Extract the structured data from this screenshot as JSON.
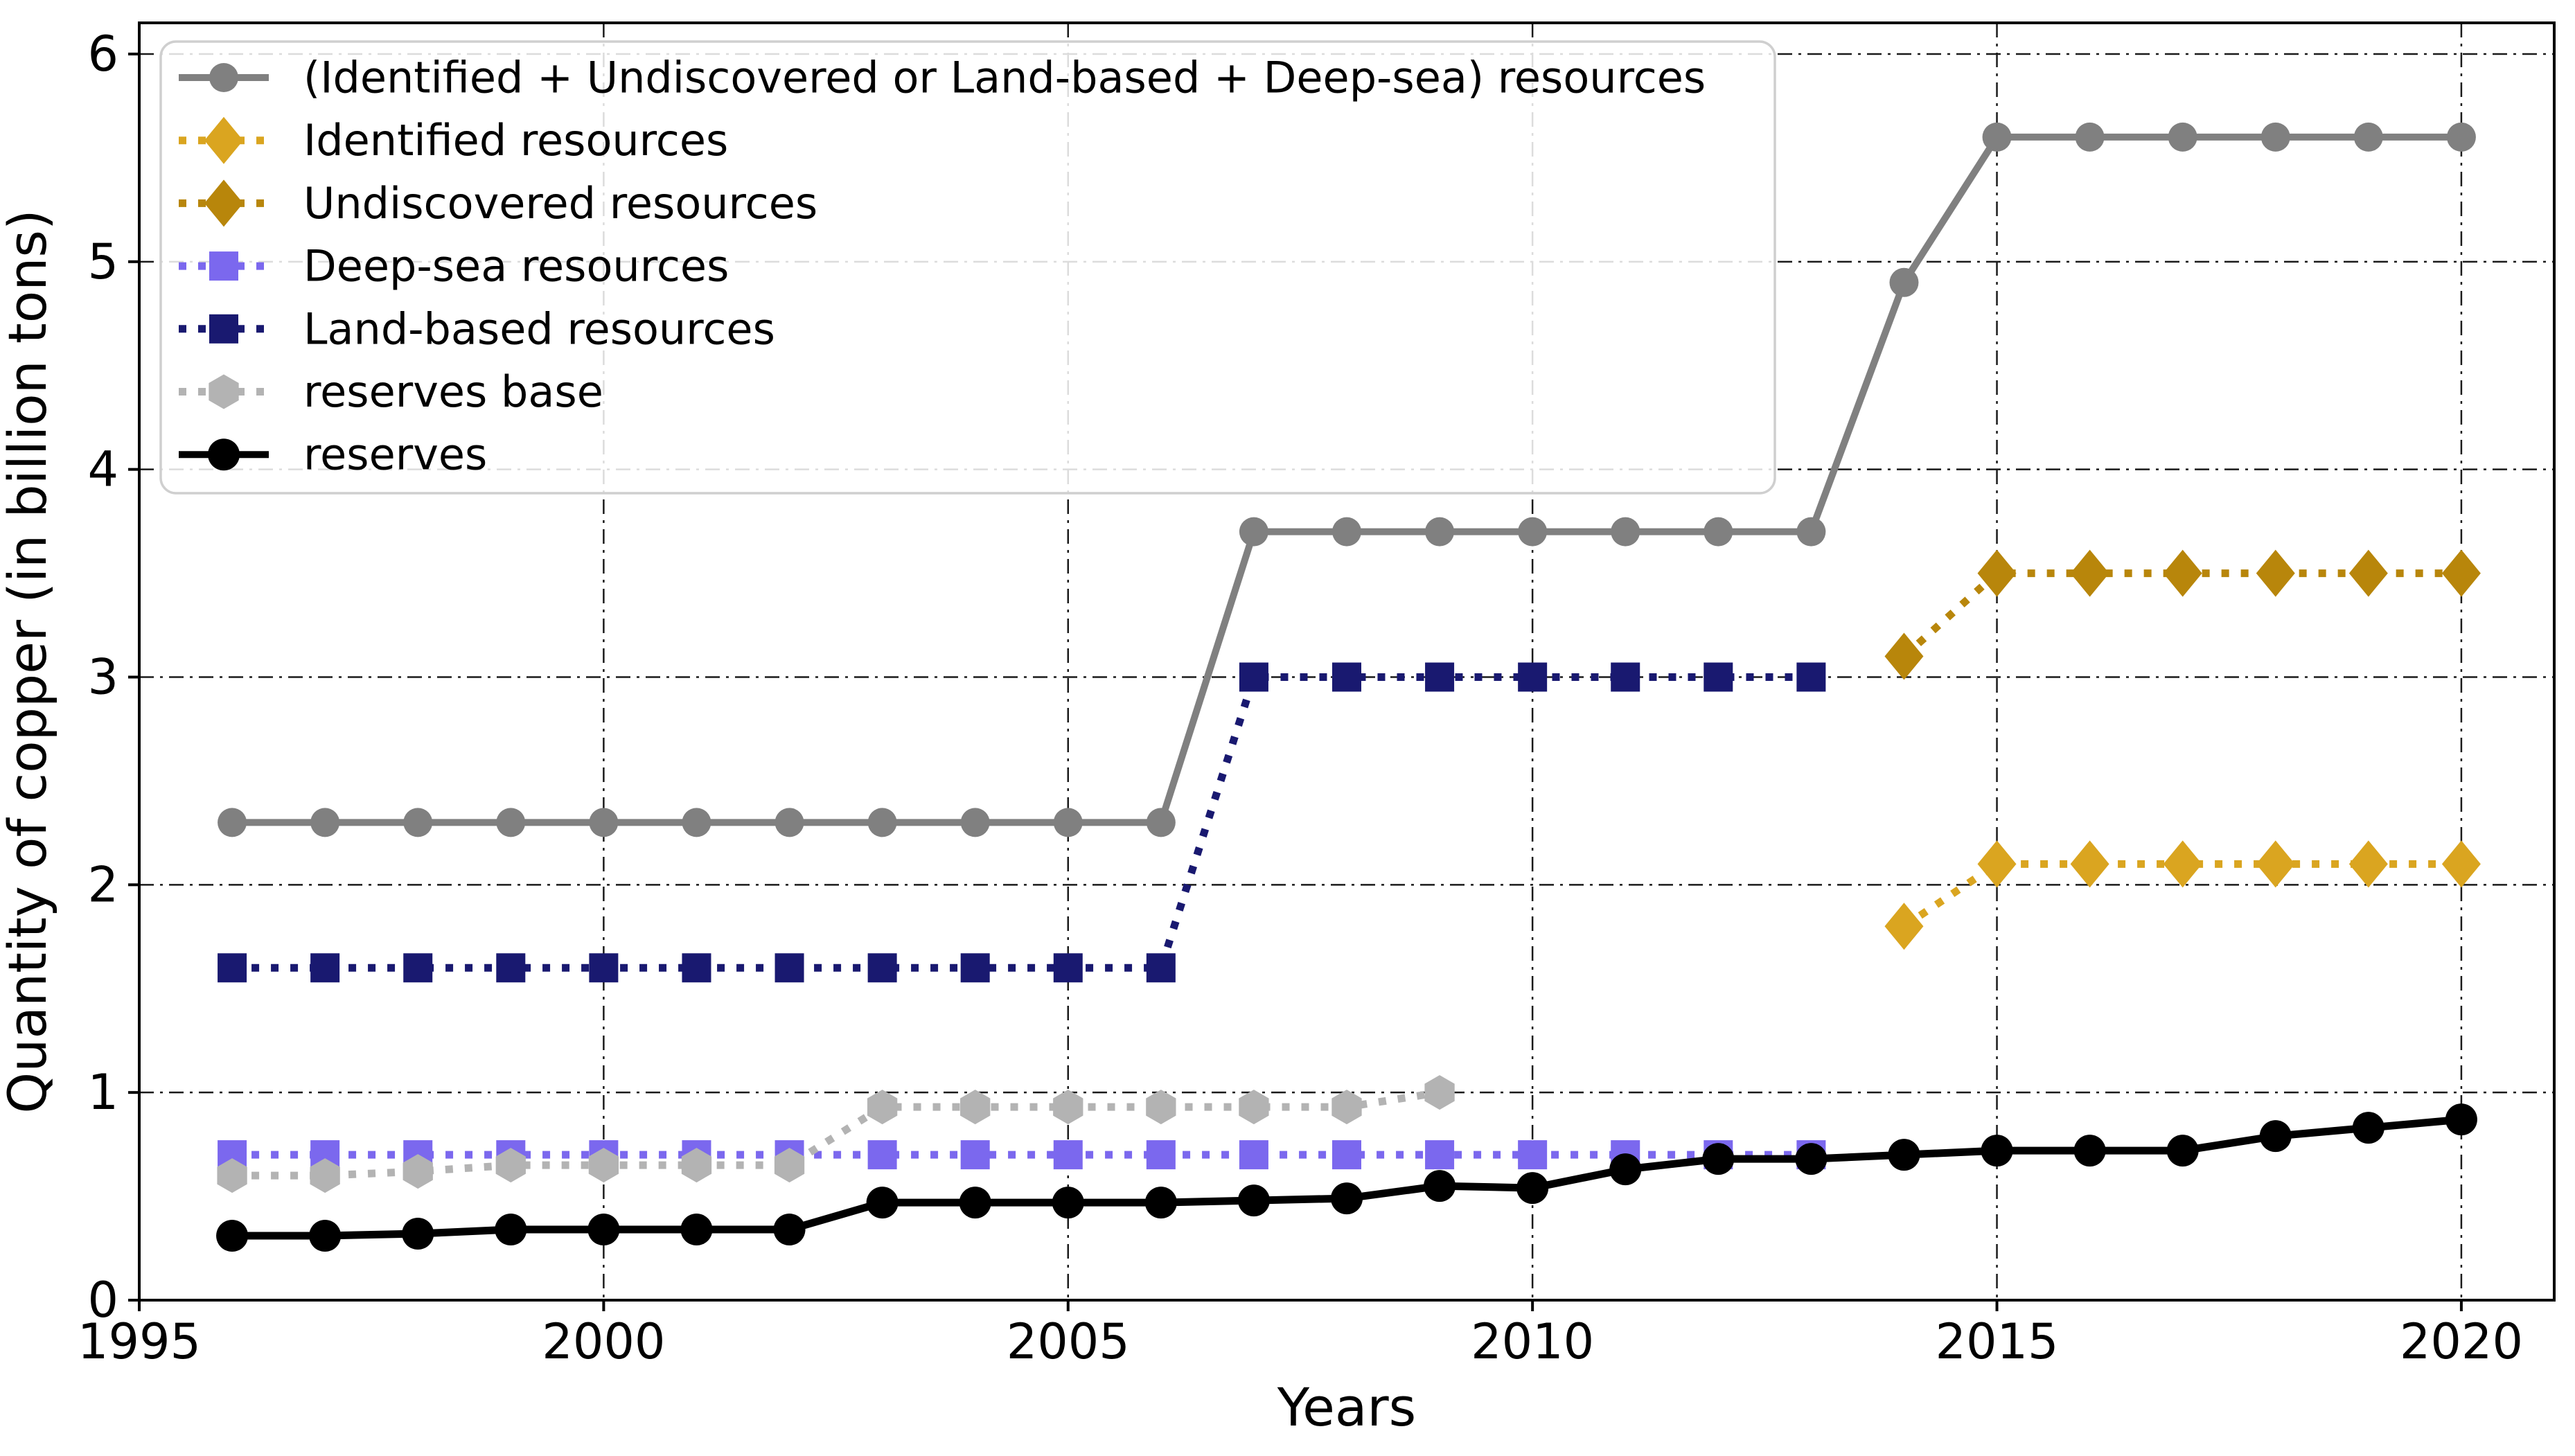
{
  "chart_data": {
    "type": "line",
    "title": "",
    "xlabel": "Years",
    "ylabel": "Quantity of copper (in billion tons)",
    "xlim": [
      1995,
      2021
    ],
    "ylim": [
      0,
      6.15
    ],
    "x_ticks": [
      1995,
      2000,
      2005,
      2010,
      2015,
      2020
    ],
    "y_ticks": [
      0,
      1,
      2,
      3,
      4,
      5,
      6
    ],
    "grid": "dash-dot on both axes",
    "legend_position": "upper left",
    "background_color": "#ffffff",
    "grid_color": "#1a1a1a",
    "series": [
      {
        "name": "(Identified + Undiscovered or Land-based + Deep-sea) resources",
        "color": "#808080",
        "line_style": "solid",
        "marker": "circle",
        "x": [
          1996,
          1997,
          1998,
          1999,
          2000,
          2001,
          2002,
          2003,
          2004,
          2005,
          2006,
          2007,
          2008,
          2009,
          2010,
          2011,
          2012,
          2013,
          2014,
          2015,
          2016,
          2017,
          2018,
          2019,
          2020
        ],
        "y": [
          2.3,
          2.3,
          2.3,
          2.3,
          2.3,
          2.3,
          2.3,
          2.3,
          2.3,
          2.3,
          2.3,
          3.7,
          3.7,
          3.7,
          3.7,
          3.7,
          3.7,
          3.7,
          4.9,
          5.6,
          5.6,
          5.6,
          5.6,
          5.6,
          5.6
        ]
      },
      {
        "name": "Identified resources",
        "color": "#DAA520",
        "line_style": "dotted",
        "marker": "diamond",
        "x": [
          2014,
          2015,
          2016,
          2017,
          2018,
          2019,
          2020
        ],
        "y": [
          1.8,
          2.1,
          2.1,
          2.1,
          2.1,
          2.1,
          2.1
        ]
      },
      {
        "name": "Undiscovered resources",
        "color": "#B8860B",
        "line_style": "dotted",
        "marker": "diamond",
        "x": [
          2014,
          2015,
          2016,
          2017,
          2018,
          2019,
          2020
        ],
        "y": [
          3.1,
          3.5,
          3.5,
          3.5,
          3.5,
          3.5,
          3.5
        ]
      },
      {
        "name": "Deep-sea resources",
        "color": "#7B68EE",
        "line_style": "dotted",
        "marker": "square",
        "x": [
          1996,
          1997,
          1998,
          1999,
          2000,
          2001,
          2002,
          2003,
          2004,
          2005,
          2006,
          2007,
          2008,
          2009,
          2010,
          2011,
          2012,
          2013
        ],
        "y": [
          0.7,
          0.7,
          0.7,
          0.7,
          0.7,
          0.7,
          0.7,
          0.7,
          0.7,
          0.7,
          0.7,
          0.7,
          0.7,
          0.7,
          0.7,
          0.7,
          0.7,
          0.7
        ]
      },
      {
        "name": "Land-based resources",
        "color": "#191970",
        "line_style": "dotted",
        "marker": "square",
        "x": [
          1996,
          1997,
          1998,
          1999,
          2000,
          2001,
          2002,
          2003,
          2004,
          2005,
          2006,
          2007,
          2008,
          2009,
          2010,
          2011,
          2012,
          2013
        ],
        "y": [
          1.6,
          1.6,
          1.6,
          1.6,
          1.6,
          1.6,
          1.6,
          1.6,
          1.6,
          1.6,
          1.6,
          3.0,
          3.0,
          3.0,
          3.0,
          3.0,
          3.0,
          3.0
        ]
      },
      {
        "name": "reserves base",
        "color": "#B3B3B3",
        "line_style": "dotted",
        "marker": "hexagon",
        "x": [
          1996,
          1997,
          1998,
          1999,
          2000,
          2001,
          2002,
          2003,
          2004,
          2005,
          2006,
          2007,
          2008,
          2009
        ],
        "y": [
          0.6,
          0.6,
          0.62,
          0.65,
          0.65,
          0.65,
          0.65,
          0.93,
          0.93,
          0.93,
          0.93,
          0.93,
          0.93,
          1.0
        ]
      },
      {
        "name": "reserves",
        "color": "#000000",
        "line_style": "solid",
        "marker": "circle",
        "x": [
          1996,
          1997,
          1998,
          1999,
          2000,
          2001,
          2002,
          2003,
          2004,
          2005,
          2006,
          2007,
          2008,
          2009,
          2010,
          2011,
          2012,
          2013,
          2014,
          2015,
          2016,
          2017,
          2018,
          2019,
          2020
        ],
        "y": [
          0.31,
          0.31,
          0.32,
          0.34,
          0.34,
          0.34,
          0.34,
          0.47,
          0.47,
          0.47,
          0.47,
          0.48,
          0.49,
          0.55,
          0.54,
          0.63,
          0.68,
          0.68,
          0.7,
          0.72,
          0.72,
          0.72,
          0.79,
          0.83,
          0.87
        ]
      }
    ]
  }
}
